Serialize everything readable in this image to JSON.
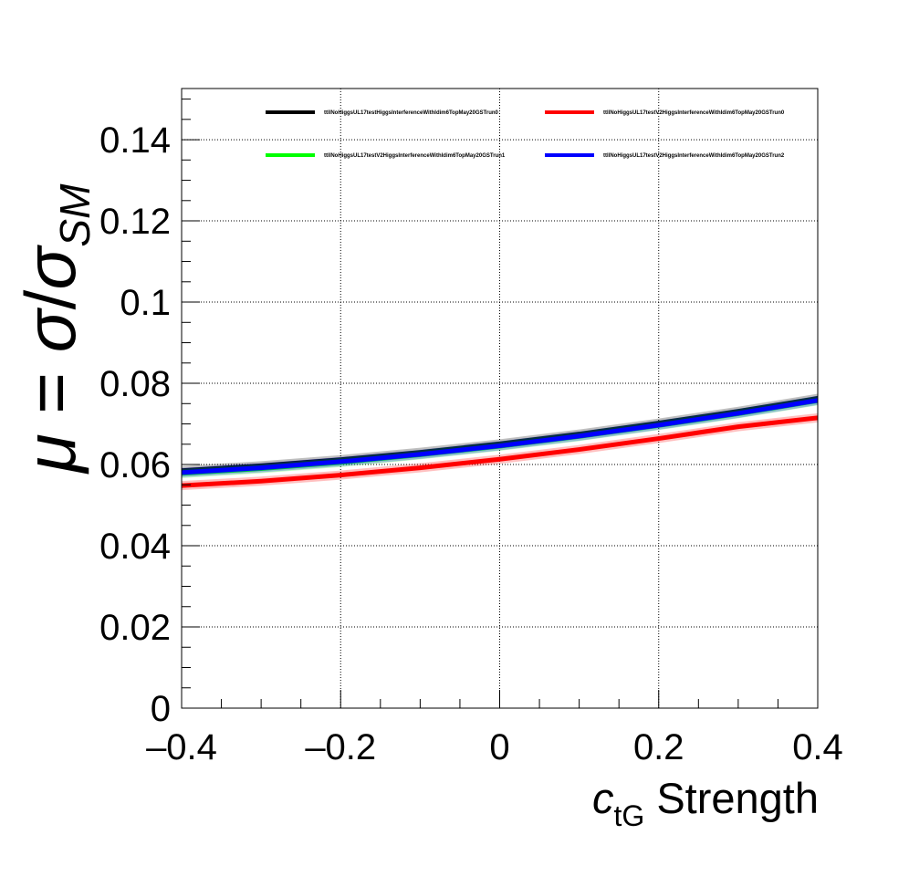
{
  "chart_data": {
    "type": "line",
    "title": "",
    "xlabel": {
      "symbol": "c",
      "subscript": "tG",
      "rest": " Strength"
    },
    "ylabel": {
      "mu": "μ",
      "equals": " = ",
      "sigma": "σ",
      "slash": "/",
      "sigma2": "σ",
      "subscript": "SM"
    },
    "xlim": [
      -0.4,
      0.4
    ],
    "ylim": [
      0,
      0.1526
    ],
    "xticks": [
      -0.4,
      -0.2,
      0,
      0.2,
      0.4
    ],
    "xtick_labels": [
      "–0.4",
      "–0.2",
      "0",
      "0.2",
      "0.4"
    ],
    "yticks": [
      0,
      0.02,
      0.04,
      0.06,
      0.08,
      0.1,
      0.12,
      0.14
    ],
    "ytick_labels": [
      "0",
      "0.02",
      "0.04",
      "0.06",
      "0.08",
      "0.1",
      "0.12",
      "0.14"
    ],
    "grid": true,
    "legend_position": "top",
    "x": [
      -0.4,
      -0.3,
      -0.2,
      -0.1,
      0.0,
      0.1,
      0.2,
      0.3,
      0.4
    ],
    "series": [
      {
        "name": "ttllNoHiggsUL17testHiggsInterferenceWithIdim6TopMay20GSTrun0",
        "color": "#000000",
        "values": [
          0.0585,
          0.0597,
          0.0612,
          0.063,
          0.0651,
          0.0675,
          0.0702,
          0.0731,
          0.0763
        ]
      },
      {
        "name": "ttllNoHiggsUL17testV2HiggsInterferenceWithIdim6TopMay20GSTrun0",
        "color": "#ff0000",
        "values": [
          0.0548,
          0.0559,
          0.0574,
          0.0592,
          0.0613,
          0.0637,
          0.0664,
          0.0693,
          0.0715
        ]
      },
      {
        "name": "ttllNoHiggsUL17testV2HiggsInterferenceWithIdim6TopMay20GSTrun1",
        "color": "#00ff00",
        "values": [
          0.0578,
          0.059,
          0.0605,
          0.0624,
          0.0645,
          0.0669,
          0.0696,
          0.0725,
          0.0757
        ]
      },
      {
        "name": "ttllNoHiggsUL17testV2HiggsInterferenceWithIdim6TopMay20GSTrun2",
        "color": "#0000ff",
        "values": [
          0.058,
          0.0592,
          0.0607,
          0.0625,
          0.0646,
          0.067,
          0.0697,
          0.0726,
          0.0758
        ]
      }
    ]
  }
}
